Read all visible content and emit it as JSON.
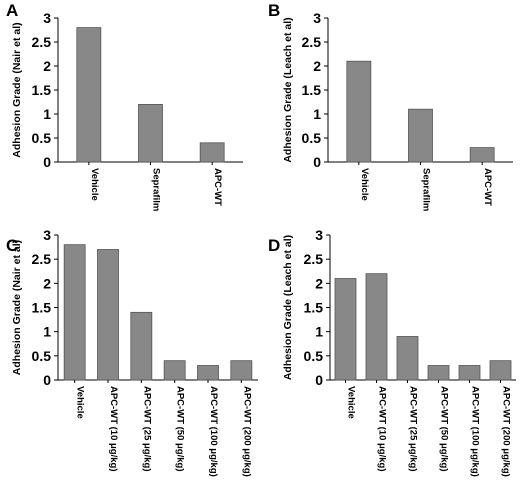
{
  "chart_data": [
    {
      "panel": "A",
      "type": "bar",
      "categories": [
        "Vehicle",
        "Seprafilm",
        "APC-WT"
      ],
      "values": [
        2.8,
        1.2,
        0.4
      ],
      "ylabel": "Adhesion Grade (Nair et al)",
      "ylim": [
        0,
        3
      ],
      "yticks": [
        "0",
        "0.5",
        "1",
        "1.5",
        "2",
        "2.5",
        "3"
      ],
      "bar_color": "#888888",
      "grid": false
    },
    {
      "panel": "B",
      "type": "bar",
      "categories": [
        "Vehicle",
        "Seprafilm",
        "APC-WT"
      ],
      "values": [
        2.1,
        1.1,
        0.3
      ],
      "ylabel": "Adhesion Grade (Leach et al)",
      "ylim": [
        0,
        3
      ],
      "yticks": [
        "0",
        "0.5",
        "1",
        "1.5",
        "2",
        "2.5",
        "3"
      ],
      "bar_color": "#888888",
      "grid": false
    },
    {
      "panel": "C",
      "type": "bar",
      "categories": [
        "Vehicle",
        "APC-WT (10 μg/kg)",
        "APC-WT (25 μg/kg)",
        "APC-WT (50 μg/kg)",
        "APC-WT (100 μg/kg)",
        "APC-WT (200 μg/kg)"
      ],
      "values": [
        2.8,
        2.7,
        1.4,
        0.4,
        0.3,
        0.4
      ],
      "ylabel": "Adhesion Grade (Nair et al)",
      "ylim": [
        0,
        3
      ],
      "yticks": [
        "0",
        "0.5",
        "1",
        "1.5",
        "2",
        "2.5",
        "3"
      ],
      "bar_color": "#888888",
      "grid": false
    },
    {
      "panel": "D",
      "type": "bar",
      "categories": [
        "Vehicle",
        "APC-WT (10 μg/kg)",
        "APC-WT (25 μg/kg)",
        "APC-WT (50 μg/kg)",
        "APC-WT (100 μg/kg)",
        "APC-WT (200 μg/kg)"
      ],
      "values": [
        2.1,
        2.2,
        0.9,
        0.3,
        0.3,
        0.4
      ],
      "ylabel": "Adhesion Grade (Leach et al)",
      "ylim": [
        0,
        3
      ],
      "yticks": [
        "0",
        "0.5",
        "1",
        "1.5",
        "2",
        "2.5",
        "3"
      ],
      "bar_color": "#888888",
      "grid": false
    }
  ]
}
